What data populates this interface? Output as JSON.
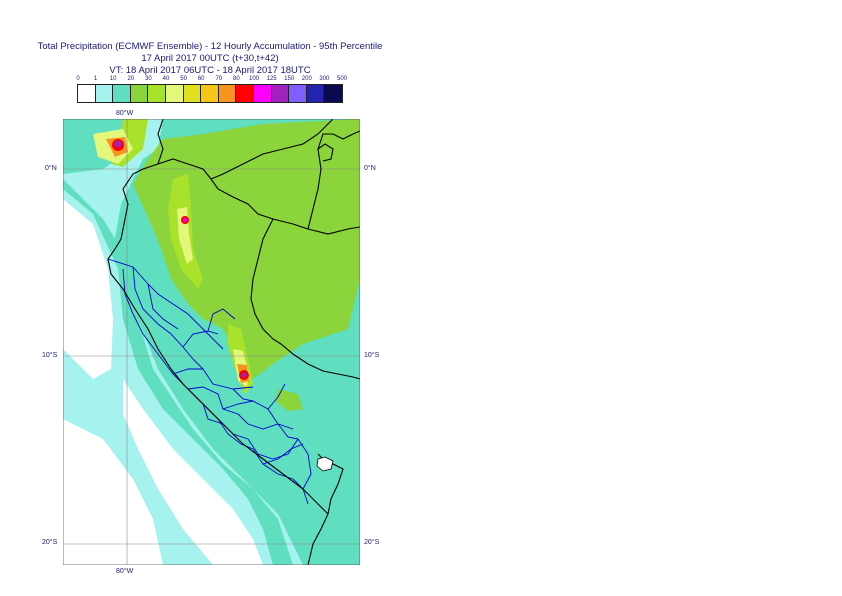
{
  "title": {
    "line1": "Total Precipitation (ECMWF Ensemble) - 12 Hourly Accumulation - 95th Percentile",
    "line2": "17 April 2017 00UTC (t+30,t+42)",
    "line3": "VT: 18 April 2017 06UTC - 18 April 2017 18UTC"
  },
  "legend": {
    "labels": [
      "0",
      "1",
      "10",
      "20",
      "30",
      "40",
      "50",
      "60",
      "70",
      "80",
      "100",
      "125",
      "150",
      "200",
      "300",
      "500"
    ],
    "colors": [
      "#ffffff",
      "#a6f2ef",
      "#5fdfbf",
      "#8bd43c",
      "#a8e22a",
      "#e3f87b",
      "#e0e020",
      "#f5c518",
      "#f7941d",
      "#ff0000",
      "#ff00ff",
      "#a020c0",
      "#7f5fff",
      "#2323b0",
      "#0a0a50"
    ]
  },
  "axes": {
    "lon_top": "80°W",
    "lon_bottom": "80°W",
    "lat_0_left": "0°N",
    "lat_0_right": "0°N",
    "lat_10_left": "10°S",
    "lat_10_right": "10°S",
    "lat_20_left": "20°S",
    "lat_20_right": "20°S"
  },
  "map_colors": {
    "ocean_light": "#a6f2ef",
    "cyan_band": "#5fdfbf",
    "green_dark": "#8bd43c",
    "green_light": "#a8e22a",
    "yellow_pale": "#e3f87b",
    "yellow": "#e0e020",
    "orange": "#f7941d",
    "red": "#ff0000",
    "magenta": "#ff00ff",
    "purple": "#a020c0",
    "border_country": "#000000",
    "border_region": "#0000cc",
    "grid": "#8a8a8a"
  }
}
